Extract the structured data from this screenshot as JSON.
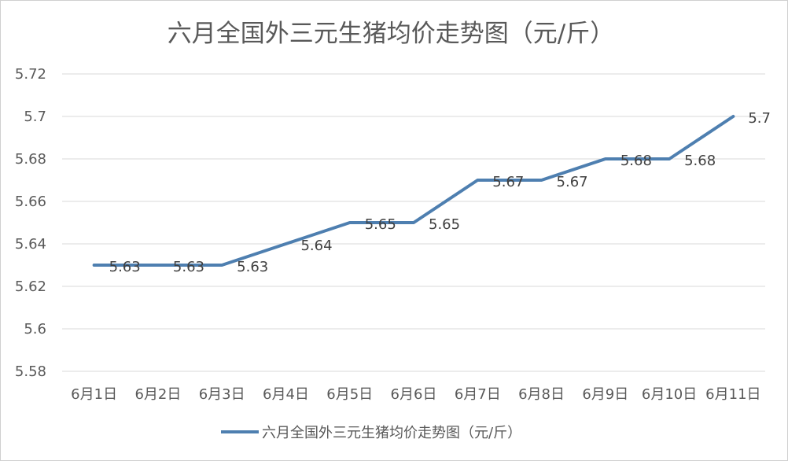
{
  "chart_data": {
    "type": "line",
    "title": "六月全国外三元生猪均价走势图（元/斤）",
    "categories": [
      "6月1日",
      "6月2日",
      "6月3日",
      "6月4日",
      "6月5日",
      "6月6日",
      "6月7日",
      "6月8日",
      "6月9日",
      "6月10日",
      "6月11日"
    ],
    "series": [
      {
        "name": "六月全国外三元生猪均价走势图（元/斤）",
        "values": [
          5.63,
          5.63,
          5.63,
          5.64,
          5.65,
          5.65,
          5.67,
          5.67,
          5.68,
          5.68,
          5.7
        ],
        "color": "#4e7fb0"
      }
    ],
    "data_labels": [
      "5.63",
      "5.63",
      "5.63",
      "5.64",
      "5.65",
      "5.65",
      "5.67",
      "5.67",
      "5.68",
      "5.68",
      "5.7"
    ],
    "y_ticks": [
      "5.58",
      "5.6",
      "5.62",
      "5.64",
      "5.66",
      "5.68",
      "5.7",
      "5.72"
    ],
    "ylim": [
      5.58,
      5.72
    ],
    "grid": true,
    "gridline_color": "#d9d9d9",
    "legend_position": "bottom",
    "xlabel": "",
    "ylabel": ""
  }
}
